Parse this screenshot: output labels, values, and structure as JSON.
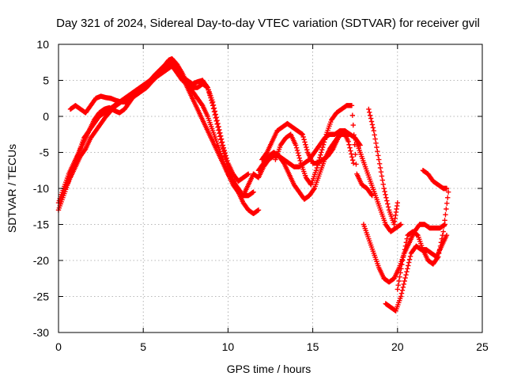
{
  "chart_data": {
    "type": "scatter",
    "title": "Day 321 of 2024, Sidereal Day-to-day VTEC variation (SDTVAR) for receiver gvil",
    "xlabel": "GPS time / hours",
    "ylabel": "SDTVAR / TECUs",
    "xlim": [
      0,
      25
    ],
    "ylim": [
      -30,
      10
    ],
    "xticks": [
      "0",
      "5",
      "10",
      "15",
      "20",
      "25"
    ],
    "yticks": [
      "10",
      "5",
      "0",
      "-5",
      "-10",
      "-15",
      "-20",
      "-25",
      "-30"
    ],
    "grid": true,
    "marker": "plus",
    "color": "#ff0000",
    "series": [
      {
        "x": [
          0.0,
          0.3,
          0.6,
          0.9,
          1.2,
          1.5,
          1.8,
          2.1,
          2.4,
          2.7,
          3.0,
          3.3,
          3.6,
          3.9,
          4.2,
          4.5,
          4.8,
          5.1,
          5.4,
          5.7,
          6.0,
          6.3,
          6.5,
          6.7,
          7.0,
          7.3,
          7.6,
          7.9,
          8.2,
          8.5,
          8.8,
          9.1,
          9.4,
          9.7,
          10.0,
          10.3,
          10.6,
          10.9,
          11.2,
          11.5,
          11.8
        ],
        "y": [
          -13.0,
          -11.0,
          -9.0,
          -7.0,
          -5.0,
          -3.0,
          -2.0,
          -1.0,
          0.0,
          0.5,
          1.0,
          1.5,
          2.0,
          2.5,
          3.0,
          3.5,
          4.0,
          4.5,
          5.0,
          5.5,
          6.0,
          6.8,
          7.5,
          7.8,
          7.0,
          5.5,
          4.0,
          2.5,
          1.0,
          -0.5,
          -2.0,
          -3.5,
          -5.0,
          -6.5,
          -8.0,
          -9.5,
          -10.5,
          -12.0,
          -13.0,
          -13.5,
          -13.0
        ]
      },
      {
        "x": [
          0.0,
          0.3,
          0.6,
          0.9,
          1.2,
          1.5,
          1.8,
          2.1,
          2.4,
          2.7,
          3.0,
          3.3,
          3.6,
          3.9,
          4.2,
          4.5,
          4.8,
          5.1,
          5.4,
          5.7,
          6.0,
          6.3,
          6.5,
          6.7,
          7.0,
          7.3,
          7.6,
          7.9,
          8.2,
          8.5,
          8.8,
          9.1,
          9.4,
          9.7,
          10.0,
          10.3,
          10.6,
          10.9,
          11.2,
          11.5
        ],
        "y": [
          -12.0,
          -10.0,
          -8.0,
          -6.5,
          -5.0,
          -3.5,
          -2.0,
          -0.5,
          0.5,
          1.0,
          1.2,
          0.8,
          0.5,
          1.0,
          2.0,
          3.0,
          3.5,
          4.2,
          5.0,
          5.8,
          6.5,
          7.2,
          7.8,
          8.0,
          7.2,
          6.0,
          4.5,
          3.5,
          2.5,
          1.5,
          0.0,
          -2.0,
          -4.0,
          -6.0,
          -8.0,
          -9.0,
          -10.0,
          -11.0,
          -11.0,
          -10.5
        ]
      },
      {
        "x": [
          0.7,
          1.0,
          1.3,
          1.6,
          1.9,
          2.2,
          2.5,
          2.8,
          3.1,
          3.4,
          3.7,
          4.0,
          4.3,
          4.6,
          4.9,
          5.2,
          5.5,
          5.8,
          6.1,
          6.4,
          6.7,
          7.0,
          7.3,
          7.6,
          7.9,
          8.2,
          8.5,
          8.8,
          9.1,
          9.4,
          9.7,
          10.0,
          10.3,
          10.6,
          10.9,
          11.2
        ],
        "y": [
          1.0,
          1.5,
          1.0,
          0.5,
          1.5,
          2.5,
          2.8,
          2.6,
          2.5,
          2.2,
          2.0,
          2.0,
          2.5,
          3.0,
          3.5,
          4.0,
          4.8,
          5.5,
          6.0,
          6.5,
          7.0,
          6.0,
          5.0,
          4.5,
          4.0,
          4.0,
          4.5,
          4.0,
          2.0,
          -1.0,
          -4.0,
          -6.5,
          -8.0,
          -9.0,
          -8.5,
          -8.0
        ]
      },
      {
        "x": [
          0.4,
          0.7,
          1.0,
          1.3,
          1.6,
          1.9,
          2.2,
          2.5,
          2.8,
          3.1,
          3.4,
          3.7,
          4.0,
          4.3,
          4.6,
          4.9,
          5.2,
          5.5,
          5.8,
          6.1,
          6.4,
          6.7,
          7.0,
          7.3,
          7.6,
          7.9,
          8.2,
          8.5,
          8.8,
          9.1,
          9.4,
          9.7,
          10.0,
          10.3,
          10.6,
          10.9,
          11.2,
          11.5
        ],
        "y": [
          -10.0,
          -8.5,
          -7.0,
          -5.5,
          -4.5,
          -3.0,
          -2.0,
          -1.0,
          0.0,
          0.8,
          1.5,
          2.0,
          2.2,
          2.8,
          3.5,
          4.0,
          4.5,
          5.0,
          5.8,
          6.5,
          7.0,
          7.5,
          6.5,
          5.5,
          5.0,
          4.5,
          4.8,
          5.0,
          4.0,
          1.5,
          -1.5,
          -4.5,
          -7.0,
          -9.0,
          -10.5,
          -11.0,
          -9.5,
          -8.0
        ]
      },
      {
        "x": [
          11.5,
          11.8,
          12.1,
          12.4,
          12.7,
          13.0,
          13.3,
          13.6,
          13.9,
          14.2,
          14.5,
          14.8,
          15.1,
          15.4,
          15.7,
          16.0,
          16.3,
          16.6,
          16.9,
          17.2,
          17.5,
          17.8,
          18.1,
          18.4,
          18.7,
          19.0,
          19.3,
          19.6,
          19.9,
          20.2
        ],
        "y": [
          -8.0,
          -8.5,
          -7.0,
          -6.0,
          -5.5,
          -5.5,
          -6.5,
          -8.0,
          -9.5,
          -10.5,
          -11.5,
          -11.0,
          -10.0,
          -8.0,
          -6.0,
          -4.5,
          -3.5,
          -2.5,
          -2.5,
          -2.5,
          -3.0,
          -5.0,
          -7.0,
          -9.0,
          -11.0,
          -13.0,
          -15.0,
          -16.0,
          -15.5,
          -15.0
        ]
      },
      {
        "x": [
          11.8,
          12.1,
          12.4,
          12.7,
          13.0,
          13.3,
          13.6,
          13.9,
          14.2,
          14.5,
          14.8,
          15.1,
          15.4,
          15.7,
          16.0,
          16.3,
          16.6,
          16.9,
          17.2,
          17.5,
          17.8
        ],
        "y": [
          -7.5,
          -6.5,
          -5.5,
          -5.0,
          -5.5,
          -6.0,
          -6.5,
          -7.0,
          -7.0,
          -6.5,
          -6.0,
          -5.0,
          -4.0,
          -3.0,
          -2.5,
          -2.5,
          -2.0,
          -2.0,
          -2.5,
          -3.0,
          -4.0
        ]
      },
      {
        "x": [
          12.0,
          12.3,
          12.6,
          12.9,
          13.2,
          13.5,
          13.8,
          14.1,
          14.4,
          14.7,
          15.0,
          15.3,
          15.6,
          15.9,
          16.2,
          16.5,
          16.8,
          17.1,
          17.4
        ],
        "y": [
          -6.0,
          -5.0,
          -3.5,
          -2.0,
          -1.5,
          -1.0,
          -1.5,
          -2.0,
          -2.5,
          -5.0,
          -6.5,
          -6.5,
          -6.0,
          -5.5,
          -4.5,
          -3.0,
          -2.0,
          -3.5,
          -6.5
        ]
      },
      {
        "x": [
          12.8,
          13.1,
          13.4,
          13.7,
          14.0,
          14.3,
          14.6,
          14.9,
          15.2,
          15.5,
          15.8,
          16.1,
          16.4,
          16.7,
          17.0,
          17.3,
          17.6,
          17.9,
          18.2,
          18.5
        ],
        "y": [
          -6.0,
          -4.0,
          -3.0,
          -2.5,
          -4.0,
          -6.5,
          -8.5,
          -9.5,
          -7.5,
          -5.0,
          -2.5,
          -0.5,
          0.5,
          1.0,
          1.5,
          1.5,
          -8.0,
          -9.5,
          -10.0,
          -11.0
        ]
      },
      {
        "x": [
          18.0,
          18.3,
          18.6,
          18.9,
          19.2,
          19.5,
          19.8,
          20.1,
          20.4,
          20.7,
          21.0,
          21.3,
          21.6,
          21.9,
          22.2,
          22.5,
          22.8
        ],
        "y": [
          -15.0,
          -17.0,
          -19.0,
          -21.0,
          -22.5,
          -23.0,
          -22.5,
          -21.0,
          -19.0,
          -17.5,
          -16.0,
          -15.0,
          -15.0,
          -15.5,
          -15.5,
          -15.5,
          -15.0
        ]
      },
      {
        "x": [
          18.3,
          18.6,
          18.9,
          19.2,
          19.5,
          19.8,
          20.0
        ],
        "y": [
          1.0,
          -2.0,
          -6.0,
          -10.0,
          -13.0,
          -15.0,
          -12.0
        ]
      },
      {
        "x": [
          19.3,
          19.6,
          19.9,
          20.2,
          20.5,
          20.8,
          21.1,
          21.4,
          21.7,
          22.0,
          22.3,
          22.6,
          22.9
        ],
        "y": [
          -26.0,
          -26.5,
          -27.0,
          -25.0,
          -22.0,
          -19.0,
          -18.0,
          -18.5,
          -18.5,
          -19.0,
          -19.5,
          -18.0,
          -16.5
        ]
      },
      {
        "x": [
          20.0,
          20.3,
          20.6,
          20.9,
          21.2,
          21.5,
          21.8,
          22.1,
          22.4,
          22.7,
          23.0
        ],
        "y": [
          -24.0,
          -20.0,
          -16.5,
          -16.0,
          -16.5,
          -18.5,
          -20.0,
          -20.5,
          -19.5,
          -16.0,
          -10.5
        ]
      },
      {
        "x": [
          21.5,
          21.8,
          22.1,
          22.4,
          22.7,
          22.9
        ],
        "y": [
          -7.5,
          -8.0,
          -9.0,
          -9.5,
          -10.0,
          -10.0
        ]
      }
    ]
  }
}
